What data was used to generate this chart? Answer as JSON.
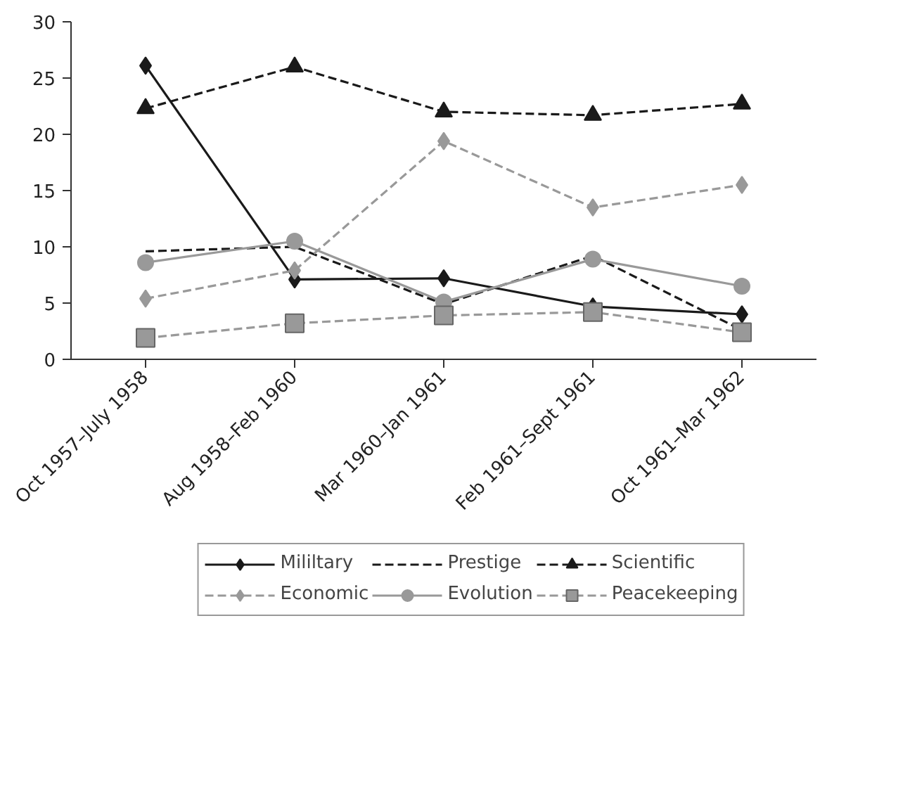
{
  "chart_data": {
    "type": "line",
    "categories": [
      "Oct 1957–July 1958",
      "Aug 1958–Feb 1960",
      "Mar 1960–Jan 1961",
      "Feb 1961–Sept 1961",
      "Oct 1961–Mar 1962"
    ],
    "series": [
      {
        "name": "Mililtary",
        "color": "#1a1a1a",
        "marker": "diamond",
        "line_style": "solid",
        "values": [
          26.1,
          7.1,
          7.2,
          4.7,
          4.0
        ]
      },
      {
        "name": "Prestige",
        "color": "#1a1a1a",
        "marker": "none",
        "line_style": "dashed",
        "values": [
          9.6,
          10.0,
          4.9,
          9.2,
          2.6
        ]
      },
      {
        "name": "Scientific",
        "color": "#1a1a1a",
        "marker": "triangle",
        "line_style": "dashed",
        "values": [
          22.3,
          26.0,
          22.0,
          21.7,
          22.7
        ]
      },
      {
        "name": "Economic",
        "color": "#999999",
        "marker": "diamond",
        "line_style": "dashed",
        "values": [
          5.4,
          7.9,
          19.4,
          13.5,
          15.5
        ]
      },
      {
        "name": "Evolution",
        "color": "#999999",
        "marker": "circle",
        "line_style": "solid",
        "values": [
          8.6,
          10.5,
          5.1,
          8.9,
          6.5
        ]
      },
      {
        "name": "Peacekeeping",
        "color": "#999999",
        "marker": "square",
        "line_style": "dashed",
        "values": [
          1.9,
          3.2,
          3.9,
          4.2,
          2.4
        ]
      }
    ],
    "ylim": [
      0,
      30
    ],
    "yticks": [
      0,
      5,
      10,
      15,
      20,
      25,
      30
    ],
    "legend": "bottom"
  }
}
